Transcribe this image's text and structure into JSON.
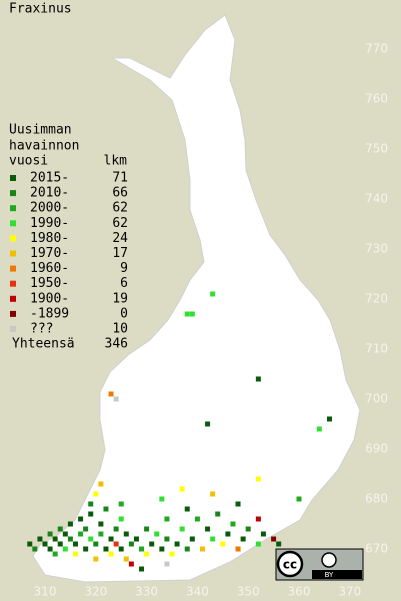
{
  "title": "Fraxinus",
  "legend": {
    "header": [
      "Uusimman",
      "havainnon",
      "vuosi"
    ],
    "count_header": "lkm",
    "rows": [
      {
        "label": "2015-",
        "count": 71,
        "color": "#0a5a0a"
      },
      {
        "label": "2010-",
        "count": 66,
        "color": "#1a841a"
      },
      {
        "label": "2000-",
        "count": 62,
        "color": "#20a820"
      },
      {
        "label": "1990-",
        "count": 62,
        "color": "#30e030"
      },
      {
        "label": "1980-",
        "count": 24,
        "color": "#ffff00"
      },
      {
        "label": "1970-",
        "count": 17,
        "color": "#f0c000"
      },
      {
        "label": "1960-",
        "count": 9,
        "color": "#f07800"
      },
      {
        "label": "1950-",
        "count": 6,
        "color": "#e83010"
      },
      {
        "label": "1900-",
        "count": 19,
        "color": "#c00000"
      },
      {
        "label": "-1899",
        "count": 0,
        "color": "#800000"
      },
      {
        "label": "???",
        "count": 10,
        "color": "#c8c8c8"
      }
    ],
    "total_label": "Yhteensä",
    "total": 346
  },
  "y_axis": [
    670,
    680,
    690,
    700,
    710,
    720,
    730,
    740,
    750,
    760,
    770
  ],
  "x_axis": [
    310,
    320,
    330,
    340,
    350,
    360,
    370
  ],
  "license": {
    "logo": "cc",
    "label": "BY"
  },
  "observations": [
    [
      343,
      721,
      3
    ],
    [
      338,
      717,
      3
    ],
    [
      339,
      717,
      3
    ],
    [
      352,
      704,
      0
    ],
    [
      342,
      695,
      0
    ],
    [
      366,
      696,
      0
    ],
    [
      364,
      694,
      3
    ],
    [
      323,
      701,
      6
    ],
    [
      324,
      700,
      10
    ],
    [
      352,
      684,
      4
    ],
    [
      360,
      680,
      2
    ],
    [
      307,
      671,
      0
    ],
    [
      308,
      670,
      1
    ],
    [
      309,
      672,
      0
    ],
    [
      310,
      671,
      0
    ],
    [
      311,
      670,
      0
    ],
    [
      311,
      673,
      1
    ],
    [
      312,
      672,
      0
    ],
    [
      312,
      669,
      2
    ],
    [
      313,
      671,
      0
    ],
    [
      313,
      674,
      1
    ],
    [
      314,
      670,
      3
    ],
    [
      314,
      673,
      0
    ],
    [
      315,
      672,
      1
    ],
    [
      315,
      675,
      0
    ],
    [
      316,
      671,
      0
    ],
    [
      316,
      669,
      4
    ],
    [
      317,
      673,
      2
    ],
    [
      317,
      676,
      0
    ],
    [
      318,
      670,
      0
    ],
    [
      318,
      674,
      1
    ],
    [
      319,
      672,
      3
    ],
    [
      319,
      677,
      0
    ],
    [
      320,
      671,
      1
    ],
    [
      320,
      668,
      5
    ],
    [
      321,
      675,
      0
    ],
    [
      321,
      673,
      2
    ],
    [
      322,
      670,
      0
    ],
    [
      322,
      678,
      1
    ],
    [
      323,
      672,
      0
    ],
    [
      323,
      669,
      4
    ],
    [
      324,
      674,
      1
    ],
    [
      324,
      671,
      7
    ],
    [
      325,
      670,
      0
    ],
    [
      325,
      676,
      3
    ],
    [
      326,
      668,
      5
    ],
    [
      326,
      673,
      0
    ],
    [
      327,
      671,
      1
    ],
    [
      327,
      667,
      8
    ],
    [
      328,
      672,
      0
    ],
    [
      329,
      670,
      2
    ],
    [
      330,
      674,
      1
    ],
    [
      330,
      669,
      4
    ],
    [
      331,
      671,
      0
    ],
    [
      332,
      673,
      3
    ],
    [
      333,
      670,
      0
    ],
    [
      334,
      672,
      1
    ],
    [
      334,
      676,
      2
    ],
    [
      335,
      669,
      4
    ],
    [
      336,
      671,
      0
    ],
    [
      337,
      674,
      3
    ],
    [
      338,
      670,
      1
    ],
    [
      338,
      678,
      0
    ],
    [
      339,
      672,
      0
    ],
    [
      340,
      676,
      2
    ],
    [
      341,
      670,
      5
    ],
    [
      342,
      674,
      0
    ],
    [
      343,
      672,
      3
    ],
    [
      344,
      677,
      1
    ],
    [
      345,
      671,
      4
    ],
    [
      346,
      673,
      0
    ],
    [
      347,
      675,
      2
    ],
    [
      348,
      670,
      6
    ],
    [
      349,
      672,
      0
    ],
    [
      350,
      674,
      1
    ],
    [
      352,
      671,
      3
    ],
    [
      353,
      673,
      0
    ],
    [
      355,
      672,
      9
    ],
    [
      356,
      671,
      0
    ],
    [
      320,
      681,
      4
    ],
    [
      321,
      683,
      5
    ],
    [
      319,
      679,
      1
    ],
    [
      325,
      679,
      2
    ],
    [
      333,
      680,
      3
    ],
    [
      337,
      682,
      4
    ],
    [
      343,
      681,
      5
    ],
    [
      348,
      679,
      0
    ],
    [
      352,
      676,
      8
    ],
    [
      329,
      666,
      0
    ],
    [
      334,
      667,
      10
    ]
  ]
}
